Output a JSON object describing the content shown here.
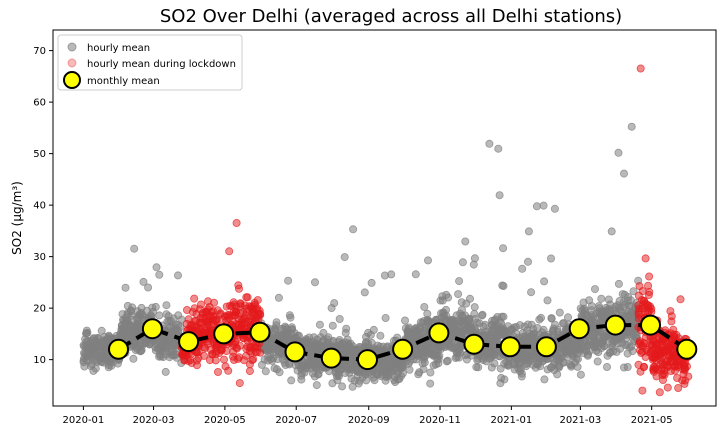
{
  "chart_data": {
    "type": "scatter",
    "title": "SO2 Over Delhi (averaged across all Delhi stations)",
    "xlabel": "",
    "ylabel": "SO2 (μg/m³)",
    "xlim": [
      "2019-12-06",
      "2021-06-25"
    ],
    "ylim": [
      1,
      74
    ],
    "x_ticks": [
      "2020-01",
      "2020-03",
      "2020-05",
      "2020-07",
      "2020-09",
      "2020-11",
      "2021-01",
      "2021-03",
      "2021-05"
    ],
    "y_ticks": [
      10,
      20,
      30,
      40,
      50,
      60,
      70
    ],
    "legend_position": "top-left",
    "grid": false,
    "colors": {
      "hourly": "#808080",
      "lockdown": "#e41a1c",
      "monthly_fill": "#ffff00",
      "monthly_line": "#000000"
    },
    "legend": [
      {
        "key": "hourly",
        "label": "hourly mean"
      },
      {
        "key": "lockdown",
        "label": "hourly mean during lockdown"
      },
      {
        "key": "monthly",
        "label": "monthly mean"
      }
    ],
    "series": [
      {
        "name": "hourly mean",
        "style": "scatter",
        "segments": [
          {
            "start": "2020-01-01",
            "end": "2020-03-24",
            "months": [
              {
                "m": "2020-01",
                "c": 12,
                "s": 2.6,
                "hi": 22
              },
              {
                "m": "2020-02",
                "c": 15,
                "s": 3.6,
                "hi": 32
              },
              {
                "m": "2020-03",
                "c": 14,
                "s": 3.4,
                "hi": 29
              }
            ]
          },
          {
            "start": "2020-06-01",
            "end": "2021-04-18",
            "months": [
              {
                "m": "2020-06",
                "c": 13,
                "s": 3.6,
                "hi": 28
              },
              {
                "m": "2020-07",
                "c": 11,
                "s": 3.2,
                "hi": 26
              },
              {
                "m": "2020-08",
                "c": 10,
                "s": 3.4,
                "hi": 36
              },
              {
                "m": "2020-09",
                "c": 10,
                "s": 3.2,
                "hi": 28
              },
              {
                "m": "2020-10",
                "c": 13,
                "s": 4.2,
                "hi": 33
              },
              {
                "m": "2020-11",
                "c": 15,
                "s": 4.6,
                "hi": 34
              },
              {
                "m": "2020-12",
                "c": 13,
                "s": 4.2,
                "hi": 52
              },
              {
                "m": "2021-01",
                "c": 12,
                "s": 3.8,
                "hi": 40
              },
              {
                "m": "2021-02",
                "c": 13,
                "s": 4.2,
                "hi": 40
              },
              {
                "m": "2021-03",
                "c": 16,
                "s": 5.0,
                "hi": 39
              },
              {
                "m": "2021-04",
                "c": 17,
                "s": 6.2,
                "hi": 61
              }
            ]
          }
        ]
      },
      {
        "name": "hourly mean during lockdown",
        "style": "scatter",
        "segments": [
          {
            "start": "2020-03-25",
            "end": "2020-05-31",
            "months": [
              {
                "m": "2020-03",
                "c": 13,
                "s": 3.6,
                "hi": 24
              },
              {
                "m": "2020-04",
                "c": 15,
                "s": 4.4,
                "hi": 35
              },
              {
                "m": "2020-05",
                "c": 16,
                "s": 5.4,
                "hi": 41
              }
            ]
          },
          {
            "start": "2021-04-19",
            "end": "2021-05-31",
            "months": [
              {
                "m": "2021-04",
                "c": 17,
                "s": 7.0,
                "hi": 70
              },
              {
                "m": "2021-05",
                "c": 11,
                "s": 4.2,
                "hi": 22
              }
            ]
          }
        ]
      },
      {
        "name": "monthly mean",
        "style": "line-markers",
        "x": [
          "2020-01-31",
          "2020-02-29",
          "2020-03-31",
          "2020-04-30",
          "2020-05-31",
          "2020-06-30",
          "2020-07-31",
          "2020-08-31",
          "2020-09-30",
          "2020-10-31",
          "2020-11-30",
          "2020-12-31",
          "2021-01-31",
          "2021-02-28",
          "2021-03-31",
          "2021-04-30",
          "2021-05-31"
        ],
        "y": [
          12.0,
          16.0,
          13.5,
          15.0,
          15.3,
          11.5,
          10.3,
          10.0,
          12.0,
          15.2,
          13.0,
          12.5,
          12.5,
          16.0,
          16.7,
          16.7,
          12.0
        ]
      }
    ]
  }
}
